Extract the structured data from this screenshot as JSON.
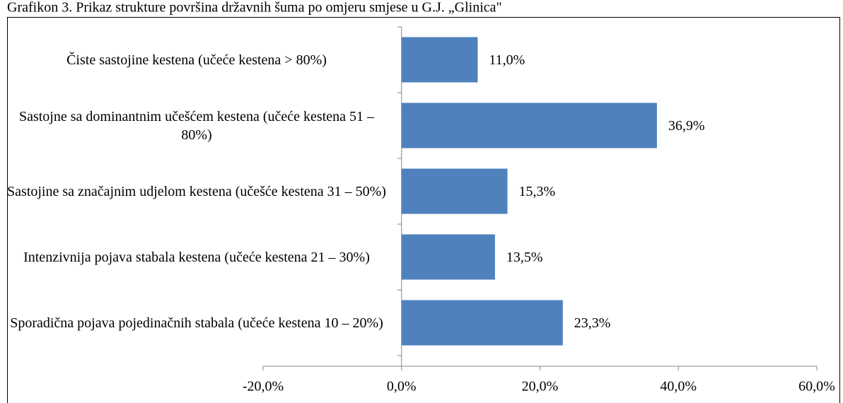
{
  "chart_data": {
    "type": "bar",
    "orientation": "horizontal",
    "title": "Grafikon 3. Prikaz strukture površina državnih šuma po omjeru smjese u G.J. „Glinica\"",
    "categories": [
      "Čiste sastojine kestena (učeće kestena > 80%)",
      "Sastojne sa dominantnim učešćem kestena (učeće kestena 51 – 80%)",
      "Sastojine sa značajnim udjelom kestena (učešće kestena 31 – 50%)",
      "Intenzivnija pojava stabala kestena (učeće kestena 21 – 30%)",
      "Sporadična pojava pojedinačnih stabala (učeće kestena 10 – 20%)"
    ],
    "values": [
      11.0,
      36.9,
      15.3,
      13.5,
      23.3
    ],
    "value_labels": [
      "11,0%",
      "36,9%",
      "15,3%",
      "13,5%",
      "23,3%"
    ],
    "color": "#4f81bd",
    "xlim": [
      -20,
      60
    ],
    "xticks": [
      {
        "value": -20,
        "label": "-20,0%"
      },
      {
        "value": 0,
        "label": "0,0%"
      },
      {
        "value": 20,
        "label": "20,0%"
      },
      {
        "value": 40,
        "label": "40,0%"
      },
      {
        "value": 60,
        "label": "60,0%"
      }
    ]
  }
}
